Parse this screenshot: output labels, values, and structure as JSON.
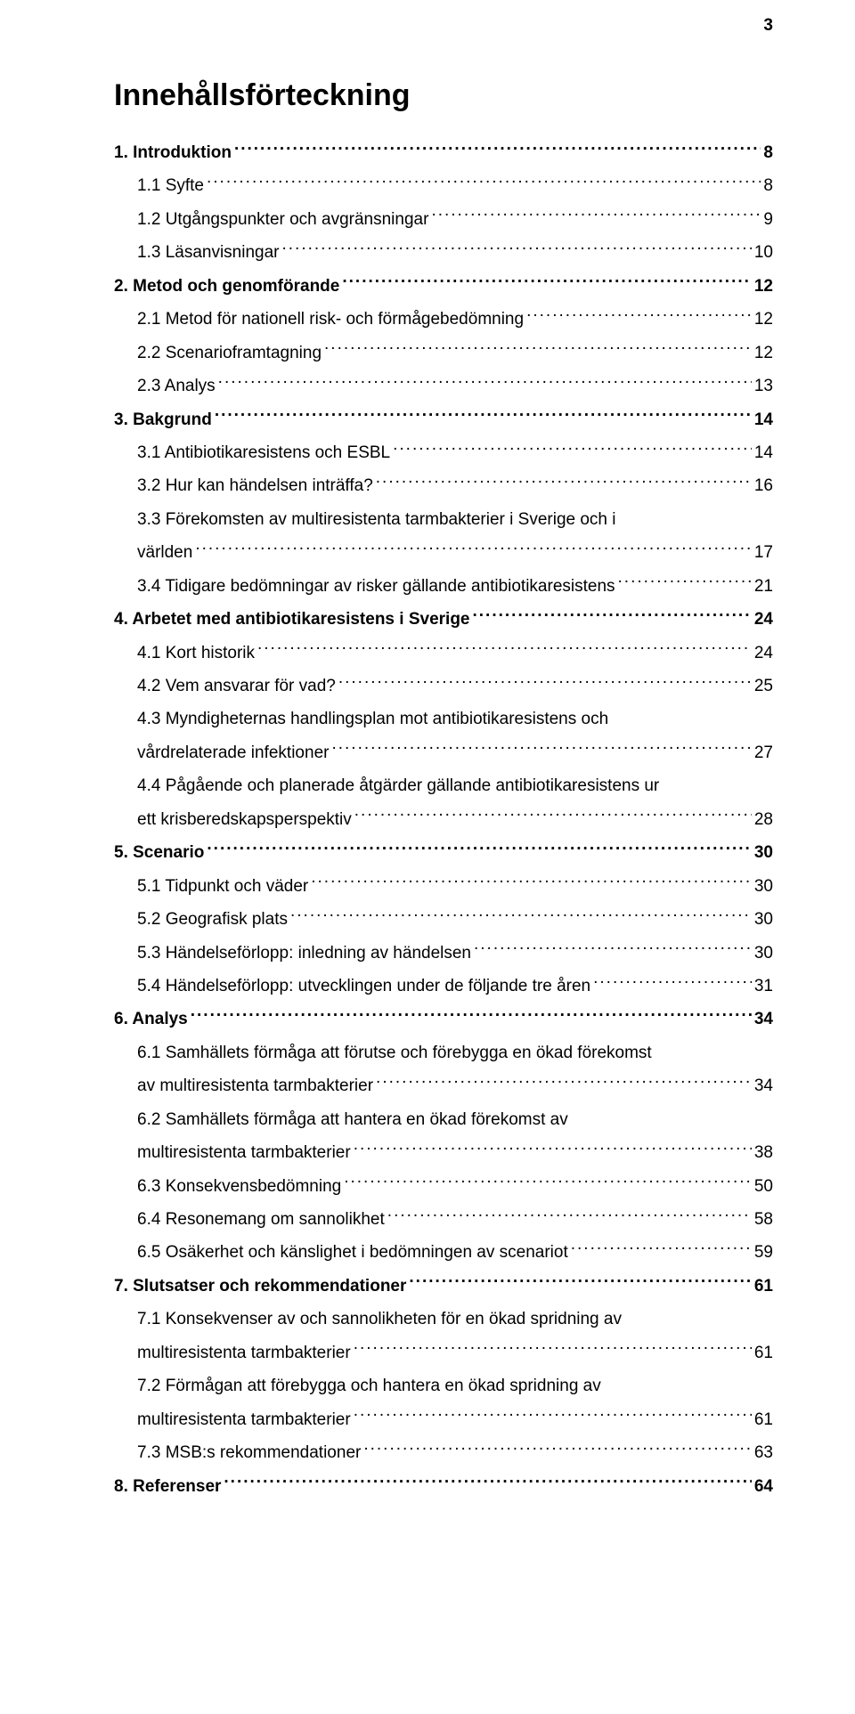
{
  "page_number": "3",
  "title": "Innehållsförteckning",
  "toc": [
    {
      "level": 1,
      "label": "1. Introduktion",
      "page": "8"
    },
    {
      "level": 2,
      "label": "1.1 Syfte",
      "page": "8"
    },
    {
      "level": 2,
      "label": "1.2 Utgångspunkter och avgränsningar",
      "page": "9"
    },
    {
      "level": 2,
      "label": "1.3 Läsanvisningar",
      "page": "10"
    },
    {
      "level": 1,
      "label": "2. Metod och genomförande",
      "page": "12"
    },
    {
      "level": 2,
      "label": "2.1 Metod för nationell risk- och förmågebedömning",
      "page": "12"
    },
    {
      "level": 2,
      "label": "2.2 Scenarioframtagning",
      "page": "12"
    },
    {
      "level": 2,
      "label": "2.3 Analys",
      "page": "13"
    },
    {
      "level": 1,
      "label": "3. Bakgrund",
      "page": "14"
    },
    {
      "level": 2,
      "label": "3.1 Antibiotikaresistens och ESBL",
      "page": "14"
    },
    {
      "level": 2,
      "label": "3.2 Hur kan händelsen inträffa?",
      "page": "16"
    },
    {
      "level": 2,
      "wrap": true,
      "line1": "3.3 Förekomsten av multiresistenta tarmbakterier i Sverige och i",
      "line2": "världen",
      "page": "17"
    },
    {
      "level": 2,
      "label": "3.4 Tidigare bedömningar av risker gällande antibiotikaresistens",
      "page": "21"
    },
    {
      "level": 1,
      "label": "4. Arbetet med antibiotikaresistens i Sverige",
      "page": "24"
    },
    {
      "level": 2,
      "label": "4.1 Kort historik",
      "page": "24"
    },
    {
      "level": 2,
      "label": "4.2 Vem ansvarar för vad?",
      "page": "25"
    },
    {
      "level": 2,
      "wrap": true,
      "line1": "4.3 Myndigheternas handlingsplan mot antibiotikaresistens och",
      "line2": "vårdrelaterade infektioner",
      "page": "27"
    },
    {
      "level": 2,
      "wrap": true,
      "line1": "4.4 Pågående och planerade åtgärder gällande antibiotikaresistens ur",
      "line2": "ett krisberedskapsperspektiv",
      "page": "28"
    },
    {
      "level": 1,
      "label": "5. Scenario",
      "page": "30"
    },
    {
      "level": 2,
      "label": "5.1 Tidpunkt och väder",
      "page": "30"
    },
    {
      "level": 2,
      "label": "5.2 Geografisk plats",
      "page": "30"
    },
    {
      "level": 2,
      "label": "5.3 Händelseförlopp: inledning av händelsen",
      "page": "30"
    },
    {
      "level": 2,
      "label": "5.4 Händelseförlopp: utvecklingen under de följande tre åren",
      "page": "31"
    },
    {
      "level": 1,
      "label": "6. Analys",
      "page": "34"
    },
    {
      "level": 2,
      "wrap": true,
      "line1": "6.1 Samhällets förmåga att förutse och förebygga en ökad förekomst",
      "line2": "av multiresistenta tarmbakterier",
      "page": "34"
    },
    {
      "level": 2,
      "wrap": true,
      "line1": "6.2 Samhällets förmåga att hantera en ökad förekomst av",
      "line2": "multiresistenta tarmbakterier",
      "page": "38"
    },
    {
      "level": 2,
      "label": "6.3 Konsekvensbedömning",
      "page": "50"
    },
    {
      "level": 2,
      "label": "6.4 Resonemang om sannolikhet",
      "page": "58"
    },
    {
      "level": 2,
      "label": "6.5 Osäkerhet och känslighet i bedömningen av scenariot",
      "page": "59"
    },
    {
      "level": 1,
      "label": "7. Slutsatser och rekommendationer",
      "page": "61"
    },
    {
      "level": 2,
      "wrap": true,
      "line1": "7.1 Konsekvenser av och sannolikheten för en ökad spridning av",
      "line2": "multiresistenta tarmbakterier",
      "page": "61"
    },
    {
      "level": 2,
      "wrap": true,
      "line1": "7.2 Förmågan att förebygga och hantera en ökad spridning av",
      "line2": "multiresistenta tarmbakterier",
      "page": "61"
    },
    {
      "level": 2,
      "label": "7.3 MSB:s rekommendationer",
      "page": "63"
    },
    {
      "level": 1,
      "label": "8. Referenser",
      "page": "64"
    }
  ]
}
